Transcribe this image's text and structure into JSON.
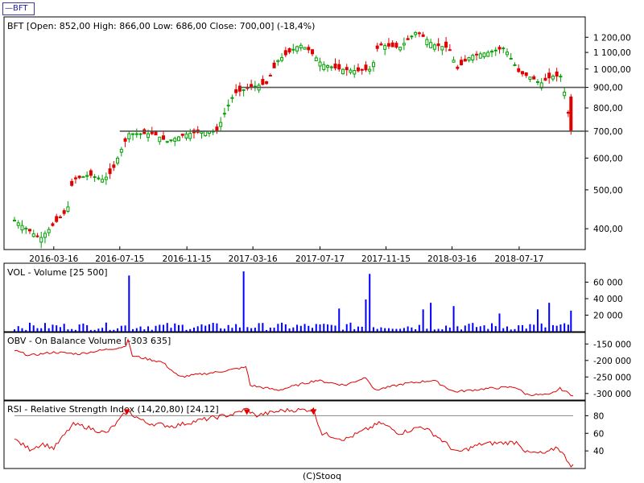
{
  "ticker_tab": "—BFT",
  "credit": "(C)Stooq",
  "chart_data": [
    {
      "type": "candlestick",
      "title": "BFT [Open: 852,00  High: 866,00  Low: 686,00  Close: 700,00] (-18,4%)",
      "y_scale": "log",
      "ylim": [
        355,
        1330
      ],
      "yticks": [
        400,
        500,
        600,
        700,
        800,
        900,
        1000,
        1100,
        1200
      ],
      "ytick_labels": [
        "400,00",
        "500,00",
        "600,00",
        "700,00",
        "800,00",
        "900,00",
        "1 000,00",
        "1 100,00",
        "1 200,00"
      ],
      "xtick_labels": [
        "2016-03-16",
        "2016-07-15",
        "2016-11-15",
        "2017-03-16",
        "2017-07-17",
        "2017-11-15",
        "2018-03-16",
        "2018-07-17"
      ],
      "horizontal_lines": [
        {
          "value": 700,
          "from": "2016-07-15"
        },
        {
          "value": 900,
          "from": "2017-02-20"
        }
      ],
      "up_color": "#00a000",
      "down_color": "#e00000",
      "control_points": [
        {
          "date": "2016-01-04",
          "close": 420
        },
        {
          "date": "2016-02-01",
          "close": 395
        },
        {
          "date": "2016-02-20",
          "close": 378
        },
        {
          "date": "2016-03-16",
          "close": 410
        },
        {
          "date": "2016-04-10",
          "close": 445
        },
        {
          "date": "2016-04-20",
          "close": 530
        },
        {
          "date": "2016-05-20",
          "close": 545
        },
        {
          "date": "2016-06-15",
          "close": 530
        },
        {
          "date": "2016-07-01",
          "close": 555
        },
        {
          "date": "2016-07-20",
          "close": 640
        },
        {
          "date": "2016-08-01",
          "close": 690
        },
        {
          "date": "2016-09-15",
          "close": 690
        },
        {
          "date": "2016-10-10",
          "close": 660
        },
        {
          "date": "2016-11-15",
          "close": 690
        },
        {
          "date": "2016-12-20",
          "close": 700
        },
        {
          "date": "2017-01-10",
          "close": 700
        },
        {
          "date": "2017-01-20",
          "close": 760
        },
        {
          "date": "2017-02-10",
          "close": 870
        },
        {
          "date": "2017-03-10",
          "close": 900
        },
        {
          "date": "2017-04-10",
          "close": 920
        },
        {
          "date": "2017-05-01",
          "close": 1050
        },
        {
          "date": "2017-06-10",
          "close": 1150
        },
        {
          "date": "2017-06-25",
          "close": 1120
        },
        {
          "date": "2017-07-20",
          "close": 1030
        },
        {
          "date": "2017-08-20",
          "close": 1000
        },
        {
          "date": "2017-09-25",
          "close": 990
        },
        {
          "date": "2017-10-20",
          "close": 1000
        },
        {
          "date": "2017-11-01",
          "close": 1150
        },
        {
          "date": "2017-12-10",
          "close": 1130
        },
        {
          "date": "2018-01-10",
          "close": 1240
        },
        {
          "date": "2018-02-10",
          "close": 1150
        },
        {
          "date": "2018-03-10",
          "close": 1130
        },
        {
          "date": "2018-03-25",
          "close": 1000
        },
        {
          "date": "2018-04-20",
          "close": 1080
        },
        {
          "date": "2018-05-20",
          "close": 1100
        },
        {
          "date": "2018-06-20",
          "close": 1130
        },
        {
          "date": "2018-07-17",
          "close": 980
        },
        {
          "date": "2018-08-10",
          "close": 950
        },
        {
          "date": "2018-08-25",
          "close": 920
        },
        {
          "date": "2018-09-15",
          "close": 960
        },
        {
          "date": "2018-10-01",
          "close": 960
        },
        {
          "date": "2018-10-10",
          "close": 852
        },
        {
          "date": "2018-10-20",
          "close": 700
        }
      ]
    },
    {
      "type": "bar",
      "title": "VOL - Volume [25 500]",
      "ylim": [
        0,
        80000
      ],
      "yticks": [
        20000,
        40000,
        60000
      ],
      "ytick_labels": [
        "20 000",
        "40 000",
        "60 000"
      ],
      "color": "#0000ff",
      "spikes": [
        {
          "date": "2016-07-30",
          "value": 68000
        },
        {
          "date": "2017-03-01",
          "value": 73000
        },
        {
          "date": "2017-10-15",
          "value": 70000
        },
        {
          "date": "2017-10-10",
          "value": 39000
        },
        {
          "date": "2017-08-20",
          "value": 28000
        },
        {
          "date": "2018-02-05",
          "value": 35000
        },
        {
          "date": "2018-01-20",
          "value": 27000
        },
        {
          "date": "2018-03-20",
          "value": 31000
        },
        {
          "date": "2018-08-20",
          "value": 27000
        },
        {
          "date": "2018-06-10",
          "value": 22000
        },
        {
          "date": "2018-09-10",
          "value": 35000
        },
        {
          "date": "2018-10-20",
          "value": 25500
        }
      ]
    },
    {
      "type": "line",
      "title": "OBV - On Balance Volume [-303 635]",
      "ylim": [
        -320000,
        -120000
      ],
      "yticks": [
        -150000,
        -200000,
        -250000,
        -300000
      ],
      "ytick_labels": [
        "-150 000",
        "-200 000",
        "-250 000",
        "-300 000"
      ],
      "color": "#e00000",
      "control_points": [
        {
          "date": "2016-01-04",
          "value": -170000
        },
        {
          "date": "2016-02-01",
          "value": -185000
        },
        {
          "date": "2016-03-16",
          "value": -175000
        },
        {
          "date": "2016-05-01",
          "value": -180000
        },
        {
          "date": "2016-07-25",
          "value": -158000
        },
        {
          "date": "2016-07-31",
          "value": -130000
        },
        {
          "date": "2016-08-05",
          "value": -185000
        },
        {
          "date": "2016-10-01",
          "value": -205000
        },
        {
          "date": "2016-11-01",
          "value": -250000
        },
        {
          "date": "2017-01-10",
          "value": -235000
        },
        {
          "date": "2017-03-05",
          "value": -220000
        },
        {
          "date": "2017-03-10",
          "value": -275000
        },
        {
          "date": "2017-05-01",
          "value": -290000
        },
        {
          "date": "2017-07-10",
          "value": -260000
        },
        {
          "date": "2017-09-01",
          "value": -275000
        },
        {
          "date": "2017-10-10",
          "value": -250000
        },
        {
          "date": "2017-10-25",
          "value": -290000
        },
        {
          "date": "2017-12-20",
          "value": -270000
        },
        {
          "date": "2018-02-10",
          "value": -260000
        },
        {
          "date": "2018-03-20",
          "value": -295000
        },
        {
          "date": "2018-05-20",
          "value": -285000
        },
        {
          "date": "2018-07-10",
          "value": -280000
        },
        {
          "date": "2018-07-30",
          "value": -303000
        },
        {
          "date": "2018-09-10",
          "value": -305000
        },
        {
          "date": "2018-09-30",
          "value": -285000
        },
        {
          "date": "2018-10-20",
          "value": -303635
        }
      ]
    },
    {
      "type": "line",
      "title": "RSI - Relative Strength Index (14,20,80) [24,12]",
      "ylim": [
        20,
        95
      ],
      "yticks": [
        40,
        60,
        80
      ],
      "ytick_labels": [
        "40",
        "60",
        "80"
      ],
      "reference_line": 80,
      "color": "#e00000",
      "signal_markers": [
        "2016-07-28",
        "2017-03-05",
        "2017-07-05"
      ],
      "control_points": [
        {
          "date": "2016-01-04",
          "value": 53
        },
        {
          "date": "2016-02-01",
          "value": 42
        },
        {
          "date": "2016-02-25",
          "value": 48
        },
        {
          "date": "2016-03-16",
          "value": 43
        },
        {
          "date": "2016-04-20",
          "value": 70
        },
        {
          "date": "2016-05-10",
          "value": 68
        },
        {
          "date": "2016-06-20",
          "value": 60
        },
        {
          "date": "2016-07-10",
          "value": 72
        },
        {
          "date": "2016-07-28",
          "value": 85
        },
        {
          "date": "2016-09-01",
          "value": 72
        },
        {
          "date": "2016-10-20",
          "value": 68
        },
        {
          "date": "2016-12-10",
          "value": 75
        },
        {
          "date": "2017-02-10",
          "value": 82
        },
        {
          "date": "2017-03-05",
          "value": 88
        },
        {
          "date": "2017-03-20",
          "value": 80
        },
        {
          "date": "2017-05-10",
          "value": 86
        },
        {
          "date": "2017-07-05",
          "value": 87
        },
        {
          "date": "2017-07-20",
          "value": 60
        },
        {
          "date": "2017-09-01",
          "value": 53
        },
        {
          "date": "2017-11-05",
          "value": 72
        },
        {
          "date": "2017-12-10",
          "value": 60
        },
        {
          "date": "2018-01-20",
          "value": 68
        },
        {
          "date": "2018-02-20",
          "value": 55
        },
        {
          "date": "2018-03-25",
          "value": 38
        },
        {
          "date": "2018-05-10",
          "value": 48
        },
        {
          "date": "2018-07-15",
          "value": 50
        },
        {
          "date": "2018-07-30",
          "value": 38
        },
        {
          "date": "2018-09-05",
          "value": 37
        },
        {
          "date": "2018-09-25",
          "value": 45
        },
        {
          "date": "2018-10-20",
          "value": 24
        }
      ]
    }
  ]
}
